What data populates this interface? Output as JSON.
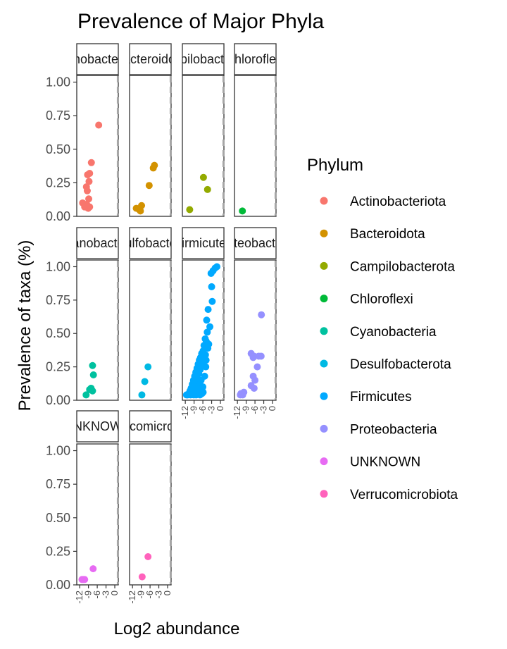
{
  "chart_data": {
    "type": "scatter",
    "title": "Prevalence of Major Phyla",
    "xlabel": "Log2 abundance",
    "ylabel": "Prevalence of taxa (%)",
    "xlim": [
      -13,
      1.2
    ],
    "ylim": [
      0,
      1.05
    ],
    "x_ticks": [
      -12,
      -9,
      -6,
      -3,
      0
    ],
    "x_tick_labels": [
      "-12",
      "-9",
      "-6",
      "-3",
      "0"
    ],
    "y_ticks": [
      0,
      0.25,
      0.5,
      0.75,
      1
    ],
    "y_tick_labels": [
      "0.00",
      "0.25",
      "0.50",
      "0.75",
      "1.00"
    ],
    "reference_line_x": 1,
    "legend": {
      "title": "Phylum",
      "position": "right"
    },
    "grid": false,
    "facets": [
      {
        "name": "Actinobacteriota",
        "strip_label": "Actinobacteriota",
        "color": "#F8766D",
        "points": [
          [
            -5.5,
            0.68
          ],
          [
            -8,
            0.4
          ],
          [
            -8.6,
            0.32
          ],
          [
            -9.3,
            0.31
          ],
          [
            -8.8,
            0.26
          ],
          [
            -9.7,
            0.22
          ],
          [
            -9.4,
            0.19
          ],
          [
            -8.9,
            0.13
          ],
          [
            -11,
            0.1
          ],
          [
            -9.6,
            0.09
          ],
          [
            -10.3,
            0.07
          ],
          [
            -8.6,
            0.07
          ],
          [
            -9.1,
            0.06
          ],
          [
            -10.0,
            0.08
          ]
        ]
      },
      {
        "name": "Bacteroidota",
        "strip_label": "Bacteroidota",
        "color": "#D39200",
        "points": [
          [
            -4.5,
            0.38
          ],
          [
            -4.9,
            0.36
          ],
          [
            -6.3,
            0.23
          ],
          [
            -10.7,
            0.06
          ],
          [
            -9.3,
            0.04
          ],
          [
            -8.9,
            0.08
          ],
          [
            -9.7,
            0.05
          ]
        ]
      },
      {
        "name": "Campilobacterota",
        "strip_label": "Campilobacterota",
        "color": "#93AA00",
        "points": [
          [
            -5.8,
            0.29
          ],
          [
            -4.4,
            0.2
          ],
          [
            -10.5,
            0.05
          ]
        ]
      },
      {
        "name": "Chloroflexi",
        "strip_label": "Chloroflexi",
        "color": "#00BA38",
        "points": [
          [
            -10.3,
            0.04
          ]
        ]
      },
      {
        "name": "Cyanobacteria",
        "strip_label": "Cyanobacteria",
        "color": "#00C19F",
        "points": [
          [
            -7.6,
            0.26
          ],
          [
            -7.3,
            0.19
          ],
          [
            -8.1,
            0.09
          ],
          [
            -7.6,
            0.07
          ],
          [
            -8.6,
            0.08
          ],
          [
            -9.8,
            0.04
          ]
        ]
      },
      {
        "name": "Desulfobacterota",
        "strip_label": "Desulfobacterota",
        "color": "#00B9E3",
        "points": [
          [
            -6.7,
            0.25
          ],
          [
            -7.8,
            0.14
          ],
          [
            -8.8,
            0.04
          ]
        ]
      },
      {
        "name": "Firmicutes",
        "strip_label": "Firmicutes",
        "color": "#00A9FF",
        "points": [
          [
            -1.2,
            1.0
          ],
          [
            -1.8,
            0.99
          ],
          [
            -2.5,
            0.97
          ],
          [
            -3.2,
            0.95
          ],
          [
            -3.0,
            0.85
          ],
          [
            -2.8,
            0.74
          ],
          [
            -4.2,
            0.68
          ],
          [
            -4.7,
            0.6
          ],
          [
            -3.6,
            0.55
          ],
          [
            -4.5,
            0.51
          ],
          [
            -5.2,
            0.46
          ],
          [
            -4.8,
            0.44
          ],
          [
            -5.6,
            0.41
          ],
          [
            -4.3,
            0.39
          ],
          [
            -5.9,
            0.37
          ],
          [
            -6.4,
            0.35
          ],
          [
            -5.1,
            0.34
          ],
          [
            -6.8,
            0.32
          ],
          [
            -7.2,
            0.3
          ],
          [
            -5.7,
            0.29
          ],
          [
            -7.6,
            0.27
          ],
          [
            -6.2,
            0.26
          ],
          [
            -8.0,
            0.24
          ],
          [
            -6.9,
            0.23
          ],
          [
            -8.4,
            0.21
          ],
          [
            -7.4,
            0.2
          ],
          [
            -8.8,
            0.18
          ],
          [
            -5.4,
            0.18
          ],
          [
            -7.9,
            0.17
          ],
          [
            -9.2,
            0.15
          ],
          [
            -6.6,
            0.15
          ],
          [
            -8.5,
            0.14
          ],
          [
            -9.6,
            0.12
          ],
          [
            -7.1,
            0.12
          ],
          [
            -9.0,
            0.11
          ],
          [
            -10.0,
            0.09
          ],
          [
            -8.1,
            0.09
          ],
          [
            -9.4,
            0.08
          ],
          [
            -10.4,
            0.07
          ],
          [
            -7.5,
            0.07
          ],
          [
            -8.9,
            0.06
          ],
          [
            -10.8,
            0.05
          ],
          [
            -9.8,
            0.05
          ],
          [
            -6.3,
            0.05
          ],
          [
            -11.2,
            0.04
          ],
          [
            -10.2,
            0.04
          ],
          [
            -8.3,
            0.04
          ],
          [
            -7.0,
            0.04
          ],
          [
            -11.6,
            0.04
          ],
          [
            -9.1,
            0.04
          ],
          [
            -5.9,
            0.06
          ],
          [
            -6.0,
            0.1
          ],
          [
            -5.0,
            0.25
          ],
          [
            -4.9,
            0.3
          ],
          [
            -4.0,
            0.42
          ]
        ]
      },
      {
        "name": "Proteobacteria",
        "strip_label": "Proteobacteria",
        "color": "#9590FF",
        "points": [
          [
            -3.8,
            0.64
          ],
          [
            -7.3,
            0.35
          ],
          [
            -6.3,
            0.33
          ],
          [
            -4.7,
            0.33
          ],
          [
            -3.9,
            0.33
          ],
          [
            -6.6,
            0.32
          ],
          [
            -5.2,
            0.25
          ],
          [
            -6.6,
            0.18
          ],
          [
            -6.0,
            0.15
          ],
          [
            -7.3,
            0.11
          ],
          [
            -6.3,
            0.09
          ],
          [
            -9.8,
            0.06
          ],
          [
            -10.8,
            0.05
          ],
          [
            -10.2,
            0.04
          ],
          [
            -11.0,
            0.04
          ]
        ]
      },
      {
        "name": "UNKNOWN",
        "strip_label": "UNKNOWN",
        "color": "#E76BF3",
        "points": [
          [
            -7.4,
            0.12
          ],
          [
            -10.3,
            0.04
          ],
          [
            -11.2,
            0.04
          ],
          [
            -10.8,
            0.04
          ]
        ]
      },
      {
        "name": "Verrucomicrobiota",
        "strip_label": "Verrucomicrobiota",
        "color": "#FF62BC",
        "points": [
          [
            -6.7,
            0.21
          ],
          [
            -8.7,
            0.06
          ]
        ]
      }
    ]
  }
}
